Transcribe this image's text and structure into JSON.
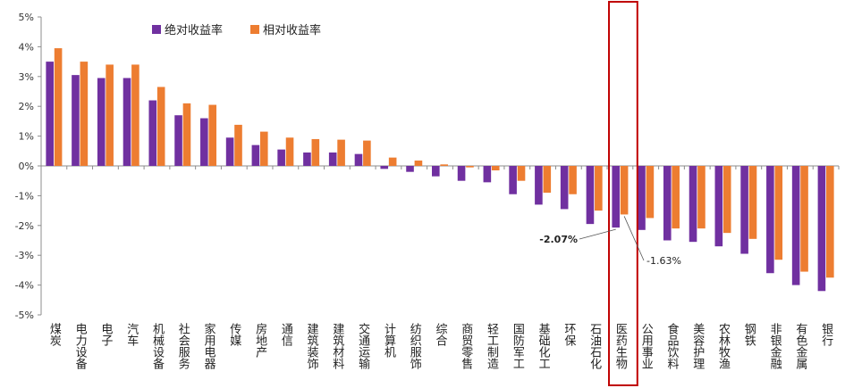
{
  "chart_data": {
    "type": "bar",
    "title": "",
    "xlabel": "",
    "ylabel": "",
    "ylim": [
      -5,
      5
    ],
    "y_ticks": [
      "5%",
      "4%",
      "3%",
      "2%",
      "1%",
      "0%",
      "-1%",
      "-2%",
      "-3%",
      "-4%",
      "-5%"
    ],
    "y_unit": "%",
    "legend_position": "top-left",
    "grid": false,
    "categories": [
      "煤炭",
      "电力设备",
      "电子",
      "汽车",
      "机械设备",
      "社会服务",
      "家用电器",
      "传媒",
      "房地产",
      "通信",
      "建筑装饰",
      "建筑材料",
      "交通运输",
      "计算机",
      "纺织服饰",
      "综合",
      "商贸零售",
      "轻工制造",
      "国防军工",
      "基础化工",
      "环保",
      "石油石化",
      "医药生物",
      "公用事业",
      "食品饮料",
      "美容护理",
      "农林牧渔",
      "钢铁",
      "非银金融",
      "有色金属",
      "银行"
    ],
    "series": [
      {
        "name": "绝对收益率",
        "color": "#7030a0",
        "values": [
          3.5,
          3.05,
          2.95,
          2.95,
          2.2,
          1.7,
          1.6,
          0.95,
          0.7,
          0.55,
          0.45,
          0.45,
          0.4,
          -0.1,
          -0.2,
          -0.35,
          -0.5,
          -0.55,
          -0.95,
          -1.3,
          -1.45,
          -1.95,
          -2.07,
          -2.15,
          -2.5,
          -2.55,
          -2.7,
          -2.95,
          -3.6,
          -4.0,
          -4.2
        ]
      },
      {
        "name": "相对收益率",
        "color": "#ed7d31",
        "values": [
          3.95,
          3.5,
          3.4,
          3.4,
          2.65,
          2.1,
          2.05,
          1.38,
          1.15,
          0.95,
          0.9,
          0.88,
          0.85,
          0.28,
          0.18,
          0.05,
          -0.05,
          -0.15,
          -0.5,
          -0.9,
          -0.95,
          -1.5,
          -1.63,
          -1.75,
          -2.1,
          -2.1,
          -2.25,
          -2.45,
          -3.15,
          -3.55,
          -3.75
        ]
      }
    ],
    "annotations": [
      {
        "category": "医药生物",
        "series": "绝对收益率",
        "label": "-2.07%"
      },
      {
        "category": "医药生物",
        "series": "相对收益率",
        "label": "-1.63%"
      }
    ],
    "highlight_category": "医药生物",
    "highlight_color": "#c00000"
  }
}
